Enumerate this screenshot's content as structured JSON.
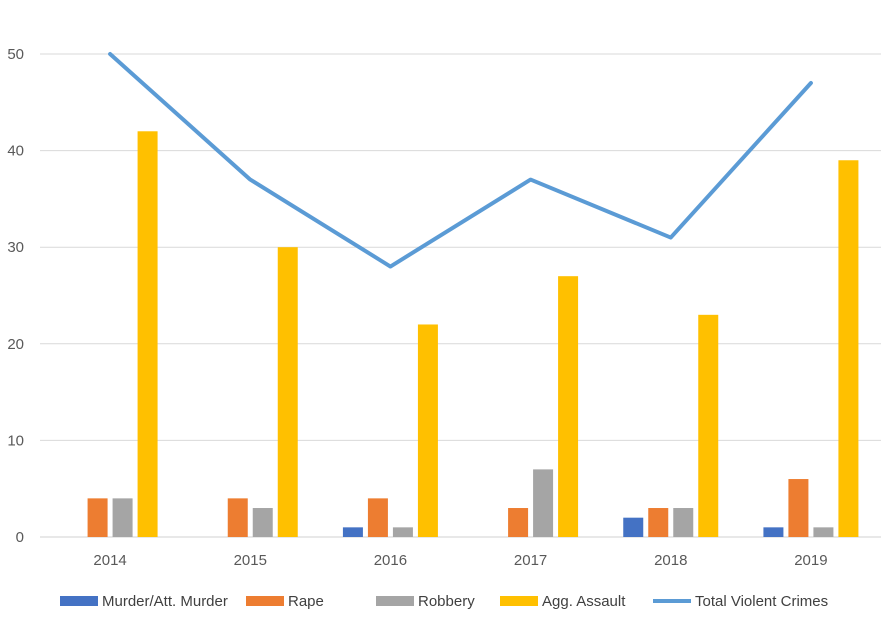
{
  "chart_data": {
    "type": "bar",
    "title": "",
    "xlabel": "",
    "ylabel": "",
    "ylim": [
      0,
      50
    ],
    "yticks": [
      "0",
      "10",
      "20",
      "30",
      "40",
      "50"
    ],
    "grid": true,
    "legend_position": "bottom",
    "categories": [
      "2014",
      "2015",
      "2016",
      "2017",
      "2018",
      "2019"
    ],
    "series": [
      {
        "name": "Murder/Att. Murder",
        "kind": "bar",
        "color": "#4472C4",
        "values": [
          0,
          0,
          1,
          0,
          2,
          1
        ]
      },
      {
        "name": "Rape",
        "kind": "bar",
        "color": "#ED7D31",
        "values": [
          4,
          4,
          4,
          3,
          3,
          6
        ]
      },
      {
        "name": "Robbery",
        "kind": "bar",
        "color": "#A5A5A5",
        "values": [
          4,
          3,
          1,
          7,
          3,
          1
        ]
      },
      {
        "name": "Agg. Assault",
        "kind": "bar",
        "color": "#FFC000",
        "values": [
          42,
          30,
          22,
          27,
          23,
          39
        ]
      },
      {
        "name": "Total Violent Crimes",
        "kind": "line",
        "color": "#5B9BD5",
        "values": [
          50,
          37,
          28,
          37,
          31,
          47
        ]
      }
    ]
  }
}
